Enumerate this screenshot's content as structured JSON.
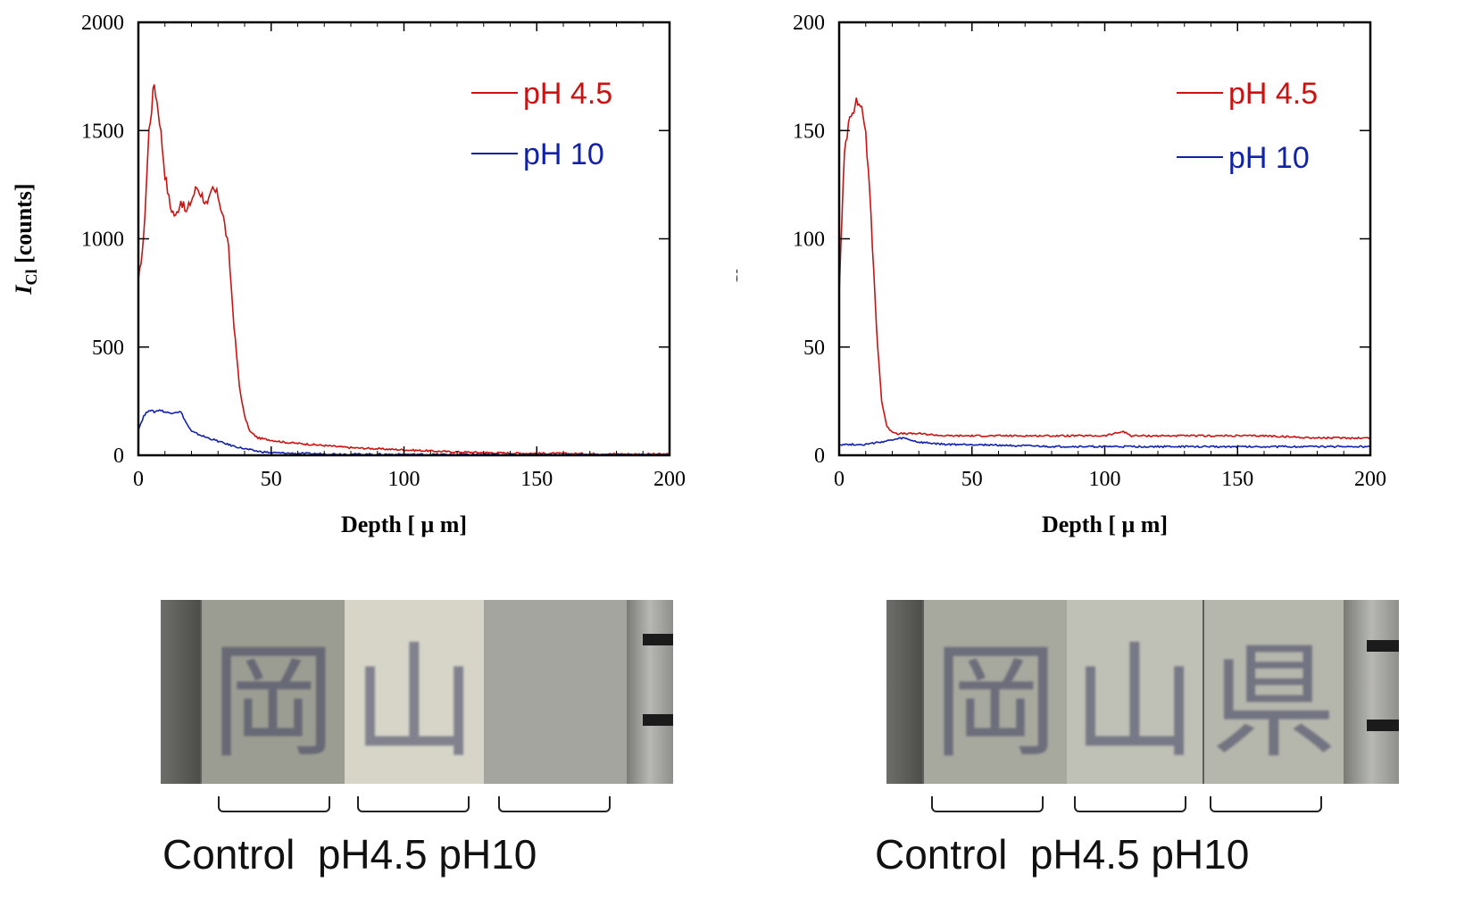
{
  "chart_data": [
    {
      "type": "line",
      "xlabel": "Depth [ μ m]",
      "ylabel_main": "I",
      "ylabel_sub": "Cl",
      "ylabel_rest": " [counts]",
      "xlim": [
        0,
        200
      ],
      "ylim": [
        0,
        2000
      ],
      "x_ticks": [
        "0",
        "50",
        "100",
        "150",
        "200"
      ],
      "y_ticks": [
        "0",
        "500",
        "1000",
        "1500",
        "2000"
      ],
      "legend_position": "top-right",
      "series": [
        {
          "name": "pH 4.5",
          "color": "#cc1111",
          "x": [
            0,
            2,
            4,
            6,
            8,
            10,
            12,
            14,
            16,
            18,
            20,
            22,
            24,
            26,
            28,
            30,
            32,
            34,
            36,
            38,
            40,
            42,
            45,
            50,
            55,
            60,
            70,
            80,
            90,
            100,
            110,
            120,
            140,
            160,
            180,
            200
          ],
          "y": [
            800,
            1000,
            1500,
            1720,
            1550,
            1300,
            1150,
            1100,
            1180,
            1120,
            1180,
            1240,
            1200,
            1150,
            1230,
            1200,
            1100,
            950,
            600,
            320,
            180,
            110,
            80,
            70,
            60,
            55,
            45,
            35,
            30,
            25,
            20,
            15,
            10,
            8,
            6,
            5
          ]
        },
        {
          "name": "pH 10",
          "color": "#1122aa",
          "x": [
            0,
            2,
            4,
            6,
            8,
            10,
            12,
            14,
            16,
            18,
            20,
            25,
            30,
            35,
            40,
            45,
            50,
            60,
            80,
            100,
            150,
            200
          ],
          "y": [
            120,
            180,
            210,
            200,
            210,
            200,
            195,
            200,
            200,
            150,
            110,
            85,
            65,
            45,
            30,
            18,
            12,
            8,
            5,
            4,
            3,
            2
          ]
        }
      ]
    },
    {
      "type": "line",
      "xlabel": "Depth [ μ m]",
      "ylabel_main": "I",
      "ylabel_sub": "Cl",
      "ylabel_rest": " [counts]",
      "xlim": [
        0,
        200
      ],
      "ylim": [
        0,
        200
      ],
      "x_ticks": [
        "0",
        "50",
        "100",
        "150",
        "200"
      ],
      "y_ticks": [
        "0",
        "50",
        "100",
        "150",
        "200"
      ],
      "legend_position": "top-right",
      "series": [
        {
          "name": "pH 4.5",
          "color": "#cc1111",
          "x": [
            0,
            2,
            4,
            6,
            8,
            10,
            12,
            14,
            16,
            18,
            20,
            22,
            25,
            30,
            40,
            50,
            60,
            80,
            100,
            107,
            110,
            120,
            140,
            160,
            180,
            200
          ],
          "y": [
            75,
            140,
            158,
            162,
            163,
            150,
            110,
            60,
            25,
            13,
            11,
            10,
            10,
            10,
            9,
            9,
            9,
            9,
            9,
            11,
            9,
            9,
            9,
            9,
            8,
            8
          ]
        },
        {
          "name": "pH 10",
          "color": "#1122aa",
          "x": [
            0,
            10,
            20,
            24,
            30,
            40,
            50,
            80,
            100,
            150,
            200
          ],
          "y": [
            5,
            5,
            7,
            8,
            6,
            5,
            5,
            4,
            4,
            4,
            4
          ]
        }
      ]
    }
  ],
  "photos": [
    {
      "glyphs": [
        "岡",
        "山",
        ""
      ],
      "captions": "Control  pH4.5 pH10"
    },
    {
      "glyphs": [
        "岡",
        "山",
        "県"
      ],
      "captions": "Control  pH4.5 pH10"
    }
  ]
}
